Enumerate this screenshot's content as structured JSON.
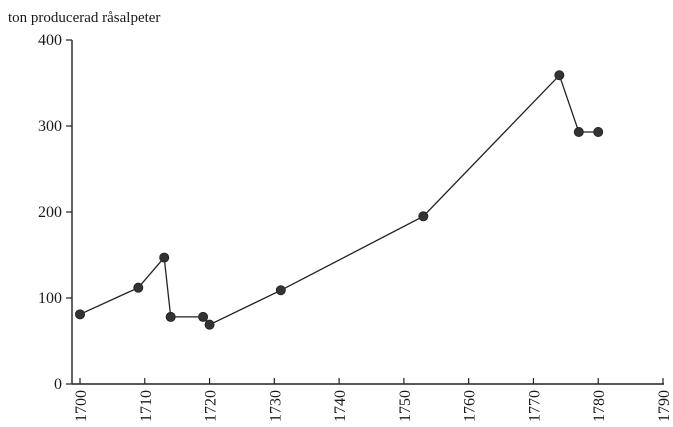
{
  "chart_data": {
    "type": "line",
    "title": "ton producerad råsalpeter",
    "xlabel": "",
    "ylabel": "",
    "xlim": [
      1700,
      1790
    ],
    "ylim": [
      0,
      400
    ],
    "x_ticks": [
      "1700",
      "1710",
      "1720",
      "1730",
      "1740",
      "1750",
      "1760",
      "1770",
      "1780",
      "1790"
    ],
    "y_ticks": [
      "0",
      "100",
      "200",
      "300",
      "400"
    ],
    "grid": false,
    "series": [
      {
        "color": "#333333",
        "points": [
          {
            "x": 1700,
            "y": 81
          },
          {
            "x": 1709,
            "y": 112
          },
          {
            "x": 1713,
            "y": 147
          },
          {
            "x": 1714,
            "y": 78
          },
          {
            "x": 1719,
            "y": 78
          },
          {
            "x": 1720,
            "y": 69
          },
          {
            "x": 1731,
            "y": 109
          },
          {
            "x": 1753,
            "y": 195
          },
          {
            "x": 1774,
            "y": 359
          },
          {
            "x": 1777,
            "y": 293
          },
          {
            "x": 1780,
            "y": 293
          }
        ]
      }
    ]
  }
}
